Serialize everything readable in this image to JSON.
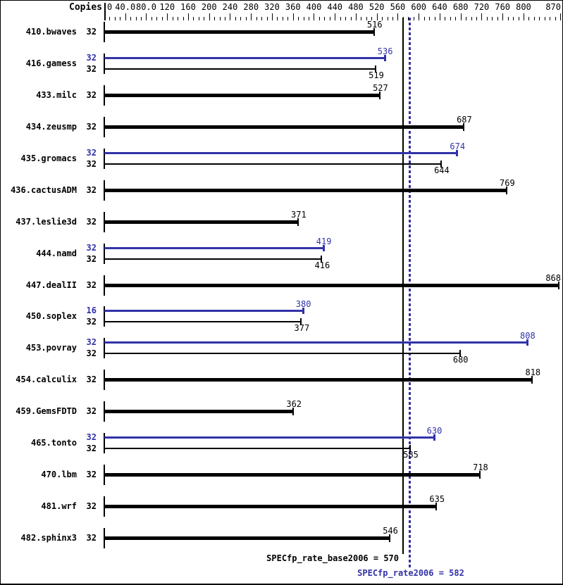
{
  "colors": {
    "base": "#000000",
    "peak": "#3232a8"
  },
  "axis": {
    "min": 0,
    "max": 870,
    "minor_tick_step": 10,
    "major_tick_step": 40,
    "tick_labels": [
      {
        "v": 0,
        "label": "0"
      },
      {
        "v": 40,
        "label": "40.0"
      },
      {
        "v": 80,
        "label": "80.0"
      },
      {
        "v": 120,
        "label": "120"
      },
      {
        "v": 160,
        "label": "160"
      },
      {
        "v": 200,
        "label": "200"
      },
      {
        "v": 240,
        "label": "240"
      },
      {
        "v": 280,
        "label": "280"
      },
      {
        "v": 320,
        "label": "320"
      },
      {
        "v": 360,
        "label": "360"
      },
      {
        "v": 400,
        "label": "400"
      },
      {
        "v": 440,
        "label": "440"
      },
      {
        "v": 480,
        "label": "480"
      },
      {
        "v": 520,
        "label": "520"
      },
      {
        "v": 560,
        "label": "560"
      },
      {
        "v": 600,
        "label": "600"
      },
      {
        "v": 640,
        "label": "640"
      },
      {
        "v": 680,
        "label": "680"
      },
      {
        "v": 720,
        "label": "720"
      },
      {
        "v": 760,
        "label": "760"
      },
      {
        "v": 800,
        "label": "800"
      },
      {
        "v": 870,
        "label": "870"
      }
    ]
  },
  "chart_data": {
    "type": "bar",
    "orientation": "horizontal",
    "copies_header": "Copies",
    "xlim": [
      0,
      870
    ],
    "benchmarks": [
      {
        "name": "410.bwaves",
        "bars": [
          {
            "kind": "base",
            "copies": "32",
            "value": 516
          }
        ]
      },
      {
        "name": "416.gamess",
        "bars": [
          {
            "kind": "peak",
            "copies": "32",
            "value": 536
          },
          {
            "kind": "base",
            "copies": "32",
            "value": 519
          }
        ]
      },
      {
        "name": "433.milc",
        "bars": [
          {
            "kind": "base",
            "copies": "32",
            "value": 527
          }
        ]
      },
      {
        "name": "434.zeusmp",
        "bars": [
          {
            "kind": "base",
            "copies": "32",
            "value": 687
          }
        ]
      },
      {
        "name": "435.gromacs",
        "bars": [
          {
            "kind": "peak",
            "copies": "32",
            "value": 674
          },
          {
            "kind": "base",
            "copies": "32",
            "value": 644
          }
        ]
      },
      {
        "name": "436.cactusADM",
        "bars": [
          {
            "kind": "base",
            "copies": "32",
            "value": 769
          }
        ]
      },
      {
        "name": "437.leslie3d",
        "bars": [
          {
            "kind": "base",
            "copies": "32",
            "value": 371
          }
        ]
      },
      {
        "name": "444.namd",
        "bars": [
          {
            "kind": "peak",
            "copies": "32",
            "value": 419
          },
          {
            "kind": "base",
            "copies": "32",
            "value": 416
          }
        ]
      },
      {
        "name": "447.dealII",
        "bars": [
          {
            "kind": "base",
            "copies": "32",
            "value": 868
          }
        ]
      },
      {
        "name": "450.soplex",
        "bars": [
          {
            "kind": "peak",
            "copies": "16",
            "value": 380
          },
          {
            "kind": "base",
            "copies": "32",
            "value": 377
          }
        ]
      },
      {
        "name": "453.povray",
        "bars": [
          {
            "kind": "peak",
            "copies": "32",
            "value": 808
          },
          {
            "kind": "base",
            "copies": "32",
            "value": 680
          }
        ]
      },
      {
        "name": "454.calculix",
        "bars": [
          {
            "kind": "base",
            "copies": "32",
            "value": 818
          }
        ]
      },
      {
        "name": "459.GemsFDTD",
        "bars": [
          {
            "kind": "base",
            "copies": "32",
            "value": 362
          }
        ]
      },
      {
        "name": "465.tonto",
        "bars": [
          {
            "kind": "peak",
            "copies": "32",
            "value": 630
          },
          {
            "kind": "base",
            "copies": "32",
            "value": 585
          }
        ]
      },
      {
        "name": "470.lbm",
        "bars": [
          {
            "kind": "base",
            "copies": "32",
            "value": 718
          }
        ]
      },
      {
        "name": "481.wrf",
        "bars": [
          {
            "kind": "base",
            "copies": "32",
            "value": 635
          }
        ]
      },
      {
        "name": "482.sphinx3",
        "bars": [
          {
            "kind": "base",
            "copies": "32",
            "value": 546
          }
        ]
      }
    ],
    "reference_lines": [
      {
        "kind": "base",
        "value": 570,
        "style": "solid"
      },
      {
        "kind": "peak",
        "value": 582,
        "style": "dotted"
      }
    ]
  },
  "footer": {
    "base_label": "SPECfp_rate_base2006 = 570",
    "peak_label": "SPECfp_rate2006 = 582"
  }
}
